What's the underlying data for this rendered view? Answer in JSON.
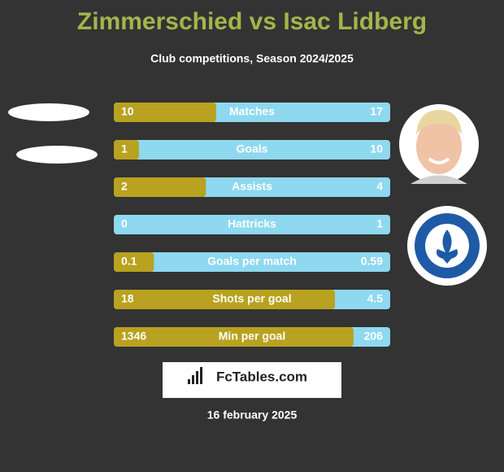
{
  "header": {
    "title": "Zimmerschied vs Isac Lidberg",
    "subtitle": "Club competitions, Season 2024/2025"
  },
  "rows": [
    {
      "label": "Matches",
      "left": 10,
      "right": 17
    },
    {
      "label": "Goals",
      "left": 1,
      "right": 10
    },
    {
      "label": "Assists",
      "left": 2,
      "right": 4
    },
    {
      "label": "Hattricks",
      "left": 0,
      "right": 1
    },
    {
      "label": "Goals per match",
      "left": 0.1,
      "right": 0.59
    },
    {
      "label": "Shots per goal",
      "left": 18,
      "right": 4.5
    },
    {
      "label": "Min per goal",
      "left": 1346,
      "right": 206
    }
  ],
  "brand": "FcTables.com",
  "date": "16 february 2025"
}
